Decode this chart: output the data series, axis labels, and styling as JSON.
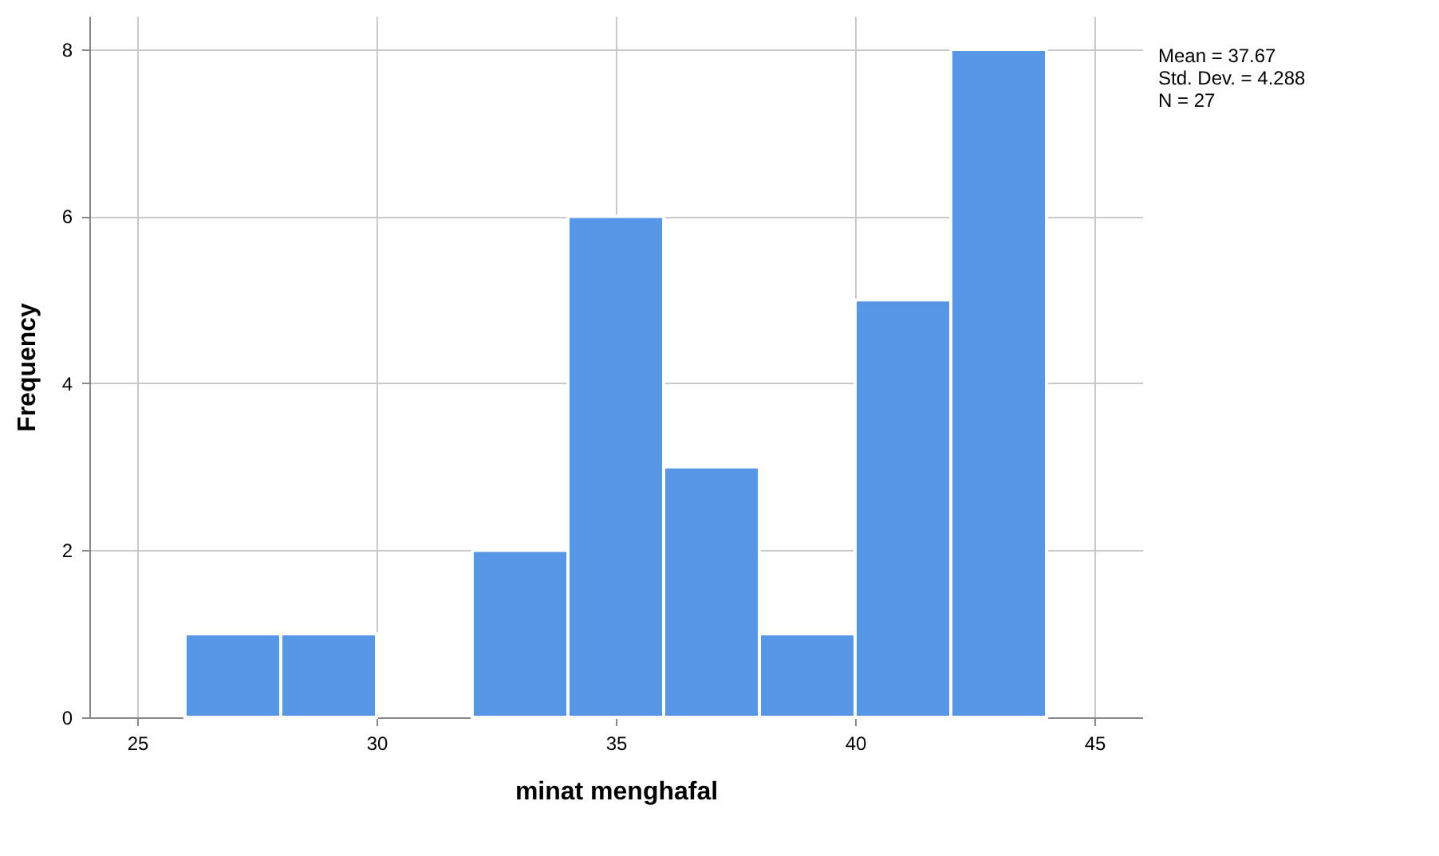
{
  "chart_data": {
    "type": "histogram",
    "xlabel": "minat menghafal",
    "ylabel": "Frequency",
    "bins": [
      26,
      28,
      30,
      32,
      34,
      36,
      38,
      40,
      42,
      44
    ],
    "values": [
      1,
      1,
      0,
      2,
      6,
      3,
      1,
      5,
      8
    ],
    "color": "#5596e6",
    "xlim": [
      24,
      46
    ],
    "xticks": [
      25,
      30,
      35,
      40,
      45
    ],
    "ylim": [
      0,
      8.4
    ],
    "yticks": [
      0,
      2,
      4,
      6,
      8
    ],
    "grid": true,
    "annotations": [
      "Mean = 37.67",
      "Std. Dev. = 4.288",
      "N = 27"
    ]
  }
}
